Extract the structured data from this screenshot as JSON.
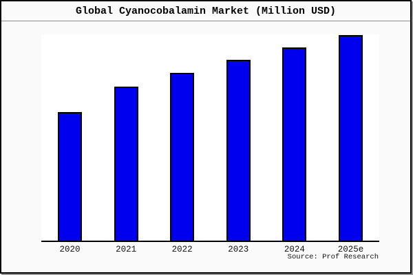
{
  "window": {
    "background_color": "#fafafa",
    "border_color": "#000000",
    "shadow_color": "#999999"
  },
  "chart_data": {
    "type": "bar",
    "title": "Global Cyanocobalamin Market (Million USD)",
    "categories": [
      "2020",
      "2021",
      "2022",
      "2023",
      "2024",
      "2025e"
    ],
    "values": [
      62.3,
      74.7,
      81.3,
      87.7,
      93.7,
      99.7
    ],
    "value_units": "relative height, % of plot area (no y-axis tick labels shown in chart)",
    "ylim": [
      0,
      100
    ],
    "xlabel": "",
    "ylabel": "",
    "grid": false,
    "legend": false,
    "plot_background": "#ffffff",
    "bar_color": "#0000EE",
    "bar_border_color": "#000000",
    "axis_line_color": "#000000",
    "source_note": "Source: Prof Research"
  }
}
